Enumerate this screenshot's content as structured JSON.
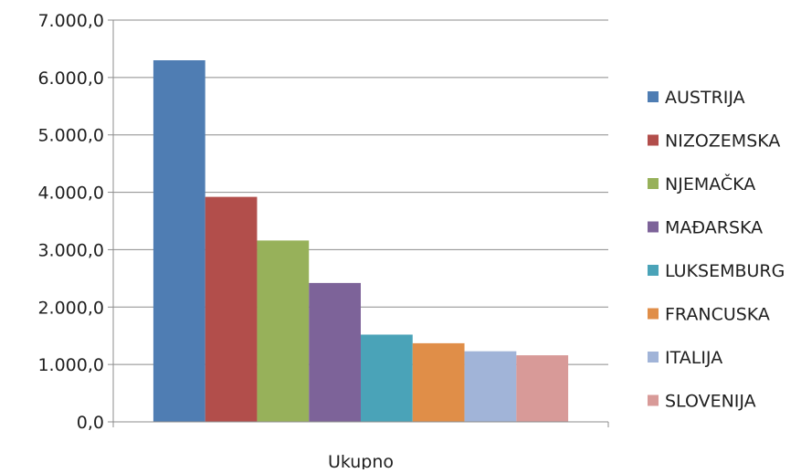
{
  "chart_data": {
    "type": "bar",
    "categories": [
      "Ukupno"
    ],
    "series": [
      {
        "name": "AUSTRIJA",
        "values": [
          6300
        ],
        "color": "#4F7DB3"
      },
      {
        "name": "NIZOZEMSKA",
        "values": [
          3920
        ],
        "color": "#B24E4B"
      },
      {
        "name": "NJEMAČKA",
        "values": [
          3160
        ],
        "color": "#97B15A"
      },
      {
        "name": "MAĐARSKA",
        "values": [
          2420
        ],
        "color": "#7D6399"
      },
      {
        "name": "LUKSEMBURG",
        "values": [
          1520
        ],
        "color": "#4AA3B8"
      },
      {
        "name": "FRANCUSKA",
        "values": [
          1370
        ],
        "color": "#E08E48"
      },
      {
        "name": "ITALIJA",
        "values": [
          1230
        ],
        "color": "#A1B4D8"
      },
      {
        "name": "SLOVENIJA",
        "values": [
          1160
        ],
        "color": "#D89A98"
      }
    ],
    "y_ticks": [
      "0,0",
      "1.000,0",
      "2.000,0",
      "3.000,0",
      "4.000,0",
      "5.000,0",
      "6.000,0",
      "7.000,0"
    ],
    "ylim": [
      0,
      7000
    ],
    "xlabel": "",
    "ylabel": "",
    "grid": true,
    "legend_position": "right",
    "gridline_color": "#8c8c8c"
  }
}
